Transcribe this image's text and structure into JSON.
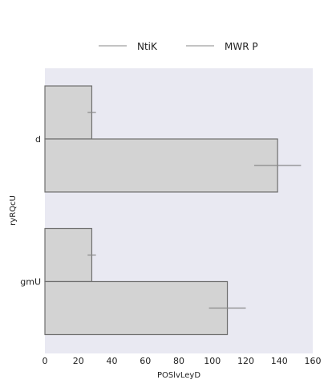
{
  "chart_data": {
    "type": "bar",
    "orientation": "horizontal",
    "categories": [
      "d",
      "gmU"
    ],
    "series": [
      {
        "name": "NtiK",
        "values": [
          28,
          28
        ],
        "errors": [
          2.5,
          2.5
        ]
      },
      {
        "name": "MWR P",
        "values": [
          139,
          109
        ],
        "errors": [
          14,
          11
        ]
      }
    ],
    "xlabel": "POSlvLeyD",
    "ylabel": "ryRQcU",
    "xlim": [
      0,
      160
    ],
    "xticks": [
      0,
      20,
      40,
      60,
      80,
      100,
      120,
      140,
      160
    ],
    "legend_position": "top",
    "grid": false,
    "colors": {
      "plot_background": "#e9e9f2",
      "bar_fill": "#d3d3d3",
      "bar_stroke": "#6f6f6f",
      "error_bar": "#888888",
      "legend_line": "#a0a0a0"
    }
  }
}
